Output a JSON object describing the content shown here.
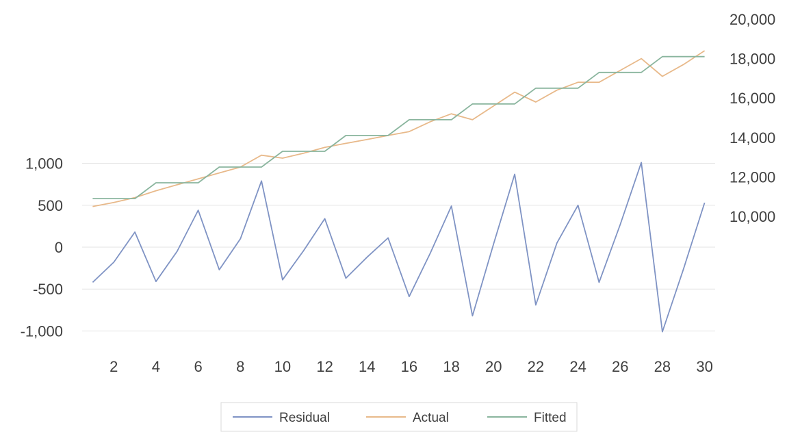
{
  "chart_data": {
    "type": "line",
    "title": "",
    "xlabel": "",
    "x_tick_labels": [
      "2",
      "4",
      "6",
      "8",
      "10",
      "12",
      "14",
      "16",
      "18",
      "20",
      "22",
      "24",
      "26",
      "28",
      "30"
    ],
    "x": [
      1,
      2,
      3,
      4,
      5,
      6,
      7,
      8,
      9,
      10,
      11,
      12,
      13,
      14,
      15,
      16,
      17,
      18,
      19,
      20,
      21,
      22,
      23,
      24,
      25,
      26,
      27,
      28,
      29,
      30
    ],
    "left_axis": {
      "range": [
        -1000,
        1500
      ],
      "tick_labels": [
        "-1,000",
        "-500",
        "0",
        "500",
        "1,000"
      ],
      "tick_values": [
        -1000,
        -500,
        0,
        500,
        1000
      ]
    },
    "right_axis": {
      "range": [
        6000,
        20000
      ],
      "tick_labels": [
        "10,000",
        "12,000",
        "14,000",
        "16,000",
        "18,000",
        "20,000"
      ],
      "tick_values": [
        10000,
        12000,
        14000,
        16000,
        18000,
        20000
      ]
    },
    "grid": "horizontal",
    "legend_position": "bottom",
    "series": [
      {
        "name": "Residual",
        "axis": "left",
        "color": "#7f93c4",
        "values": [
          -420,
          -180,
          180,
          -410,
          -50,
          440,
          -270,
          100,
          790,
          -390,
          -40,
          340,
          -370,
          -120,
          110,
          -590,
          -70,
          490,
          -820,
          40,
          870,
          -690,
          50,
          500,
          -420,
          270,
          1010,
          -1010,
          -260,
          530
        ]
      },
      {
        "name": "Actual",
        "axis": "right",
        "color": "#e8b98a",
        "values": [
          10500,
          10700,
          10950,
          11300,
          11600,
          11900,
          12200,
          12500,
          13100,
          12950,
          13200,
          13500,
          13700,
          13900,
          14100,
          14300,
          14800,
          15200,
          14900,
          15600,
          16300,
          15800,
          16400,
          16800,
          16800,
          17400,
          18000,
          17100,
          17700,
          18400
        ]
      },
      {
        "name": "Fitted",
        "axis": "right",
        "color": "#8ab59e",
        "values": [
          10900,
          10900,
          10900,
          11700,
          11700,
          11700,
          12500,
          12500,
          12500,
          13300,
          13300,
          13300,
          14100,
          14100,
          14100,
          14900,
          14900,
          14900,
          15700,
          15700,
          15700,
          16500,
          16500,
          16500,
          17300,
          17300,
          17300,
          18100,
          18100,
          18100
        ]
      }
    ]
  }
}
